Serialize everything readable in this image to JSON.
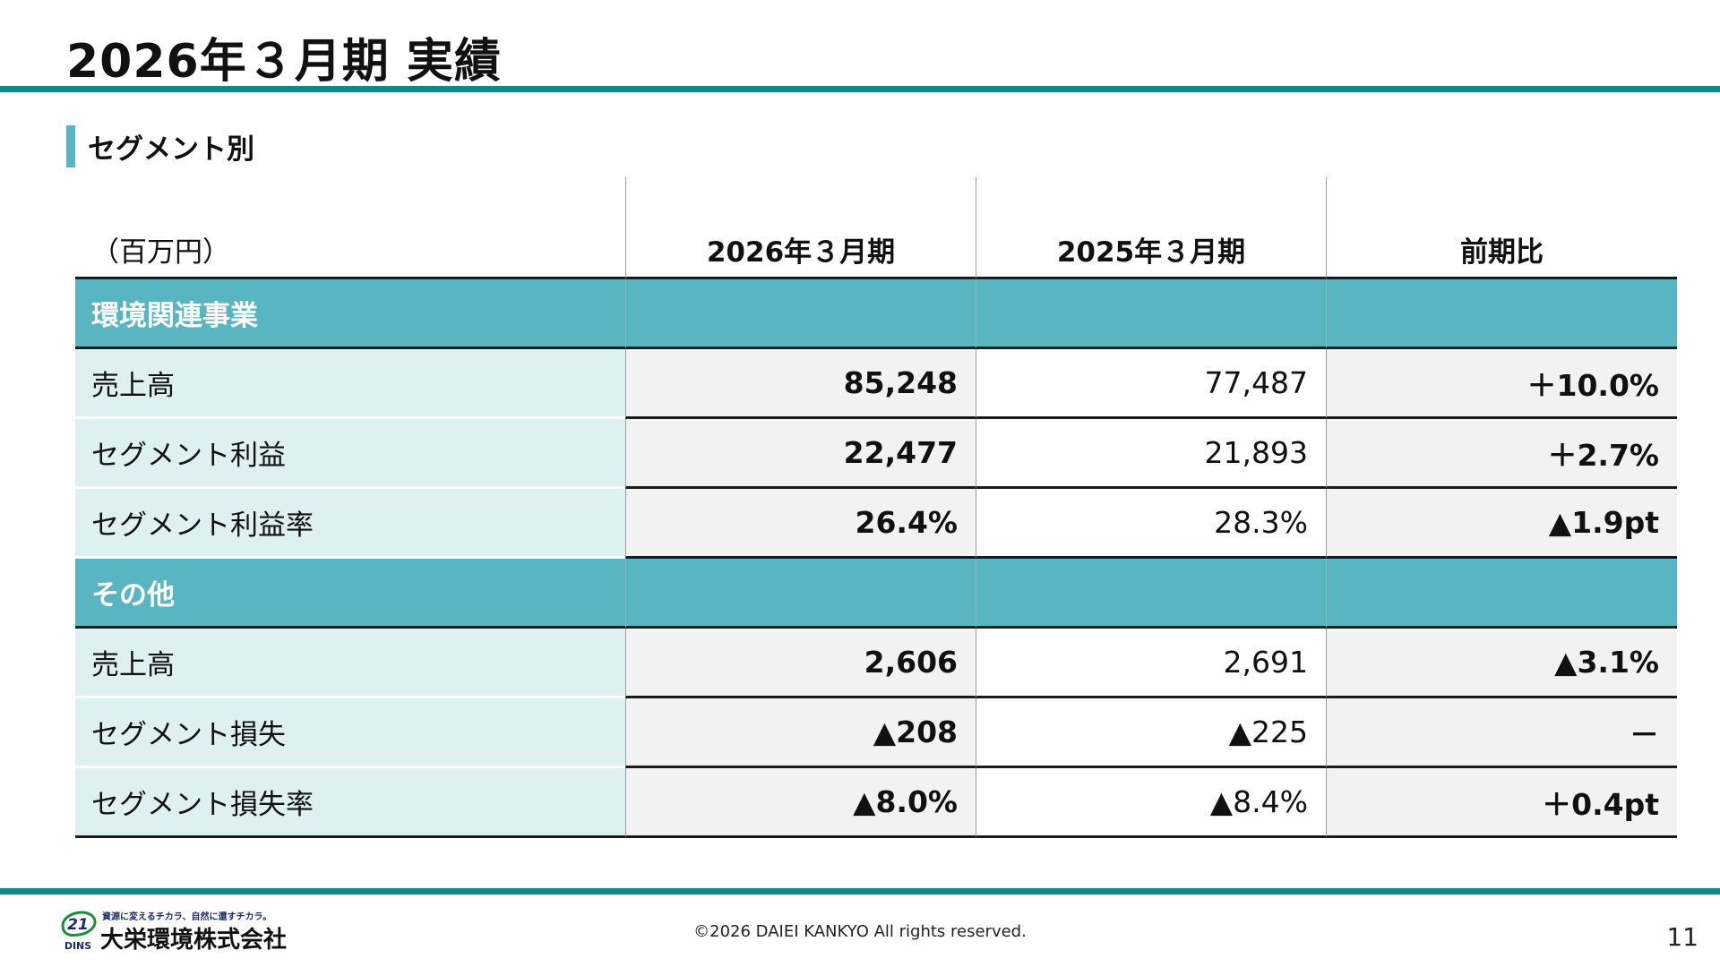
{
  "slide": {
    "title": "2026年３月期 実績"
  },
  "section": {
    "label": "セグメント別"
  },
  "table": {
    "unit": "（百万円）",
    "columns": [
      "2026年３月期",
      "2025年３月期",
      "前期比"
    ],
    "segments": [
      {
        "name": "環境関連事業",
        "rows": [
          {
            "label": "売上高",
            "current": "85,248",
            "previous": "77,487",
            "yoy": "＋10.0%"
          },
          {
            "label": "セグメント利益",
            "current": "22,477",
            "previous": "21,893",
            "yoy": "＋2.7%"
          },
          {
            "label": "セグメント利益率",
            "current": "26.4%",
            "previous": "28.3%",
            "yoy": "▲1.9pt"
          }
        ]
      },
      {
        "name": "その他",
        "rows": [
          {
            "label": "売上高",
            "current": "2,606",
            "previous": "2,691",
            "yoy": "▲3.1%"
          },
          {
            "label": "セグメント損失",
            "current": "▲208",
            "previous": "▲225",
            "yoy": "－"
          },
          {
            "label": "セグメント損失率",
            "current": "▲8.0%",
            "previous": "▲8.4%",
            "yoy": "＋0.4pt"
          }
        ]
      }
    ]
  },
  "footer": {
    "logo_tagline": "資源に変えるチカラ、自然に還すチカラ。",
    "logo_mark": "21",
    "logo_sub": "DINS",
    "company": "大栄環境株式会社",
    "copyright": "©2026 DAIEI KANKYO All rights reserved.",
    "page_number": "11"
  },
  "colors": {
    "accent_teal": "#0f8a86",
    "section_bar": "#5ab5c2",
    "segment_header": "#5ab5c2",
    "label_bg": "#dff0f3",
    "current_col_bg": "#f2f2f2",
    "logo_green": "#1e8c3a",
    "logo_navy": "#1c2b6e"
  }
}
